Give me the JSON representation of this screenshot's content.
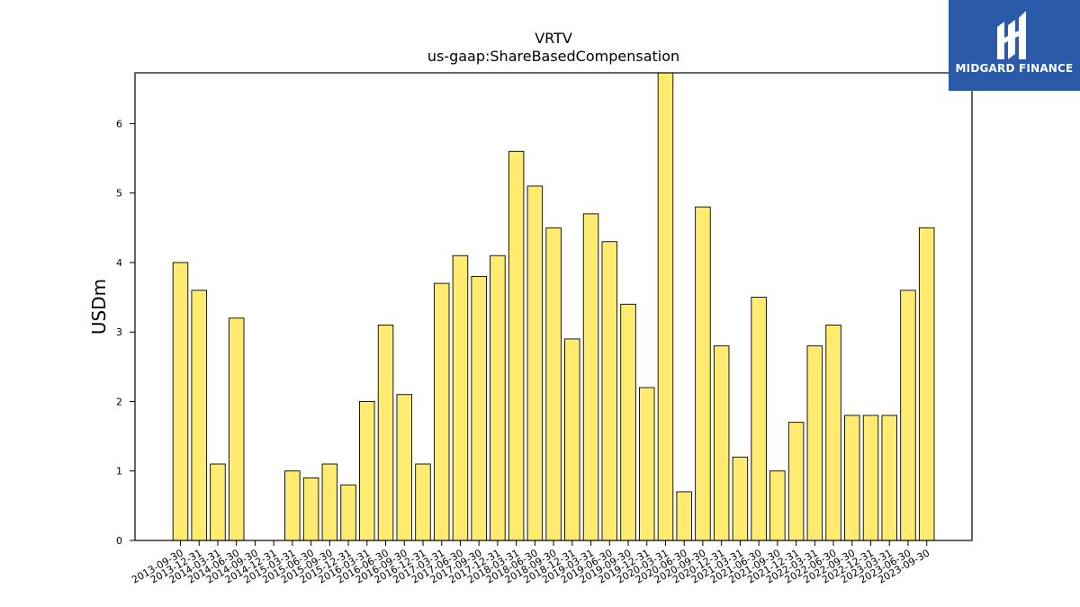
{
  "chart_data": {
    "type": "bar",
    "title": "VRTV",
    "subtitle": "us-gaap:ShareBasedCompensation",
    "xlabel": "",
    "ylabel": "USDm",
    "ylim": [
      0,
      6.73
    ],
    "yticks": [
      0,
      1,
      2,
      3,
      4,
      5,
      6
    ],
    "bar_color": "#ffeb70",
    "categories": [
      "2013-09-30",
      "2013-12-31",
      "2014-03-31",
      "2014-06-30",
      "2014-09-30",
      "2014-12-31",
      "2015-03-31",
      "2015-06-30",
      "2015-09-30",
      "2015-12-31",
      "2016-03-31",
      "2016-06-30",
      "2016-09-30",
      "2016-12-31",
      "2017-03-31",
      "2017-06-30",
      "2017-09-30",
      "2017-12-31",
      "2018-03-31",
      "2018-06-30",
      "2018-09-30",
      "2018-12-31",
      "2019-03-31",
      "2019-06-30",
      "2019-09-30",
      "2019-12-31",
      "2020-03-31",
      "2020-06-30",
      "2020-09-30",
      "2020-12-31",
      "2021-03-31",
      "2021-06-30",
      "2021-09-30",
      "2021-12-31",
      "2022-03-31",
      "2022-06-30",
      "2022-09-30",
      "2022-12-31",
      "2023-03-31",
      "2023-06-30",
      "2023-09-30"
    ],
    "values": [
      4.0,
      3.6,
      1.1,
      3.2,
      0,
      0,
      1.0,
      0.9,
      1.1,
      0.8,
      2.0,
      3.1,
      2.1,
      1.1,
      3.7,
      4.1,
      3.8,
      4.1,
      5.6,
      5.1,
      4.5,
      2.9,
      4.7,
      4.3,
      3.4,
      2.2,
      6.8,
      0.7,
      4.8,
      2.8,
      1.2,
      3.5,
      1.0,
      1.7,
      2.8,
      3.1,
      1.8,
      1.8,
      1.8,
      3.6,
      4.5
    ]
  },
  "logo": {
    "text": "MIDGARD FINANCE"
  }
}
